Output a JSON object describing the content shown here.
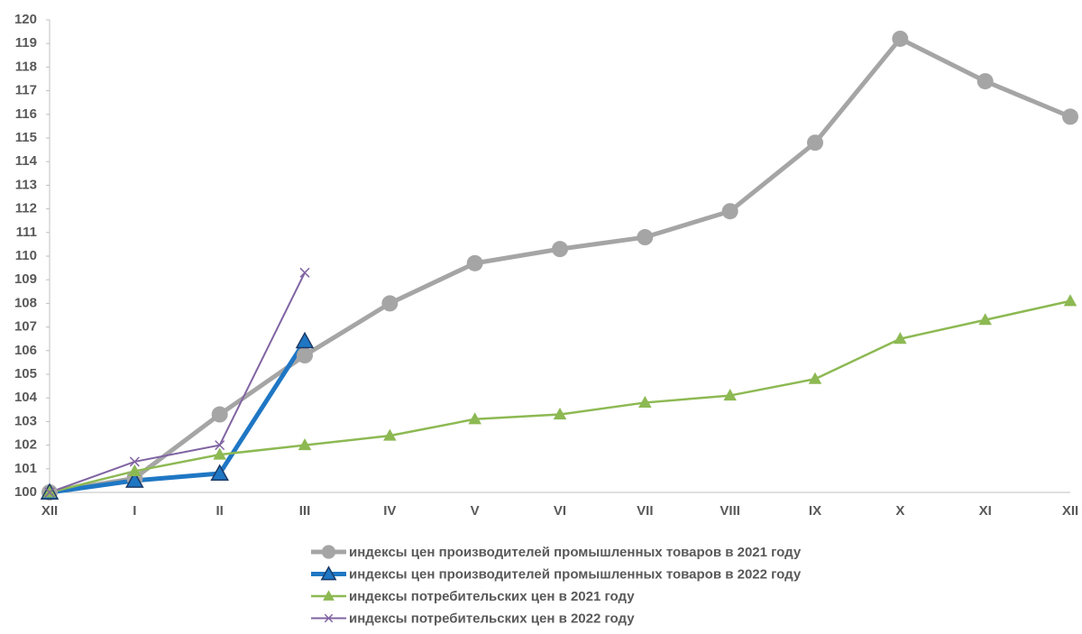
{
  "chart_data": {
    "type": "line",
    "categories": [
      "XII",
      "I",
      "II",
      "III",
      "IV",
      "V",
      "VI",
      "VII",
      "VIII",
      "IX",
      "X",
      "XI",
      "XII"
    ],
    "ylim": [
      100,
      120
    ],
    "yticks": [
      100,
      101,
      102,
      103,
      104,
      105,
      106,
      107,
      108,
      109,
      110,
      111,
      112,
      113,
      114,
      115,
      116,
      117,
      118,
      119,
      120
    ],
    "grid": false,
    "legend": "bottom",
    "series": [
      {
        "name": "индексы цен производителей промышленных товаров в 2021 году",
        "color": "#a5a5a5",
        "marker": "circle",
        "line_width": 5,
        "values": [
          100,
          100.6,
          103.3,
          105.8,
          108.0,
          109.7,
          110.3,
          110.8,
          111.9,
          114.8,
          119.2,
          117.4,
          115.9
        ]
      },
      {
        "name": "индексы цен производителей промышленных товаров в 2022 году",
        "color": "#1f77c4",
        "marker": "triangle",
        "line_width": 5,
        "values": [
          100,
          100.5,
          100.8,
          106.4,
          null,
          null,
          null,
          null,
          null,
          null,
          null,
          null,
          null
        ]
      },
      {
        "name": "индексы потребительских цен в 2021 году",
        "color": "#8db953",
        "marker": "triangle",
        "line_width": 2.5,
        "values": [
          100,
          100.9,
          101.6,
          102.0,
          102.4,
          103.1,
          103.3,
          103.8,
          104.1,
          104.8,
          106.5,
          107.3,
          108.1
        ]
      },
      {
        "name": "индексы потребительских цен в 2022 году",
        "color": "#8064a2",
        "marker": "x",
        "line_width": 2,
        "values": [
          100,
          101.3,
          102.0,
          109.3,
          null,
          null,
          null,
          null,
          null,
          null,
          null,
          null,
          null
        ]
      }
    ]
  }
}
